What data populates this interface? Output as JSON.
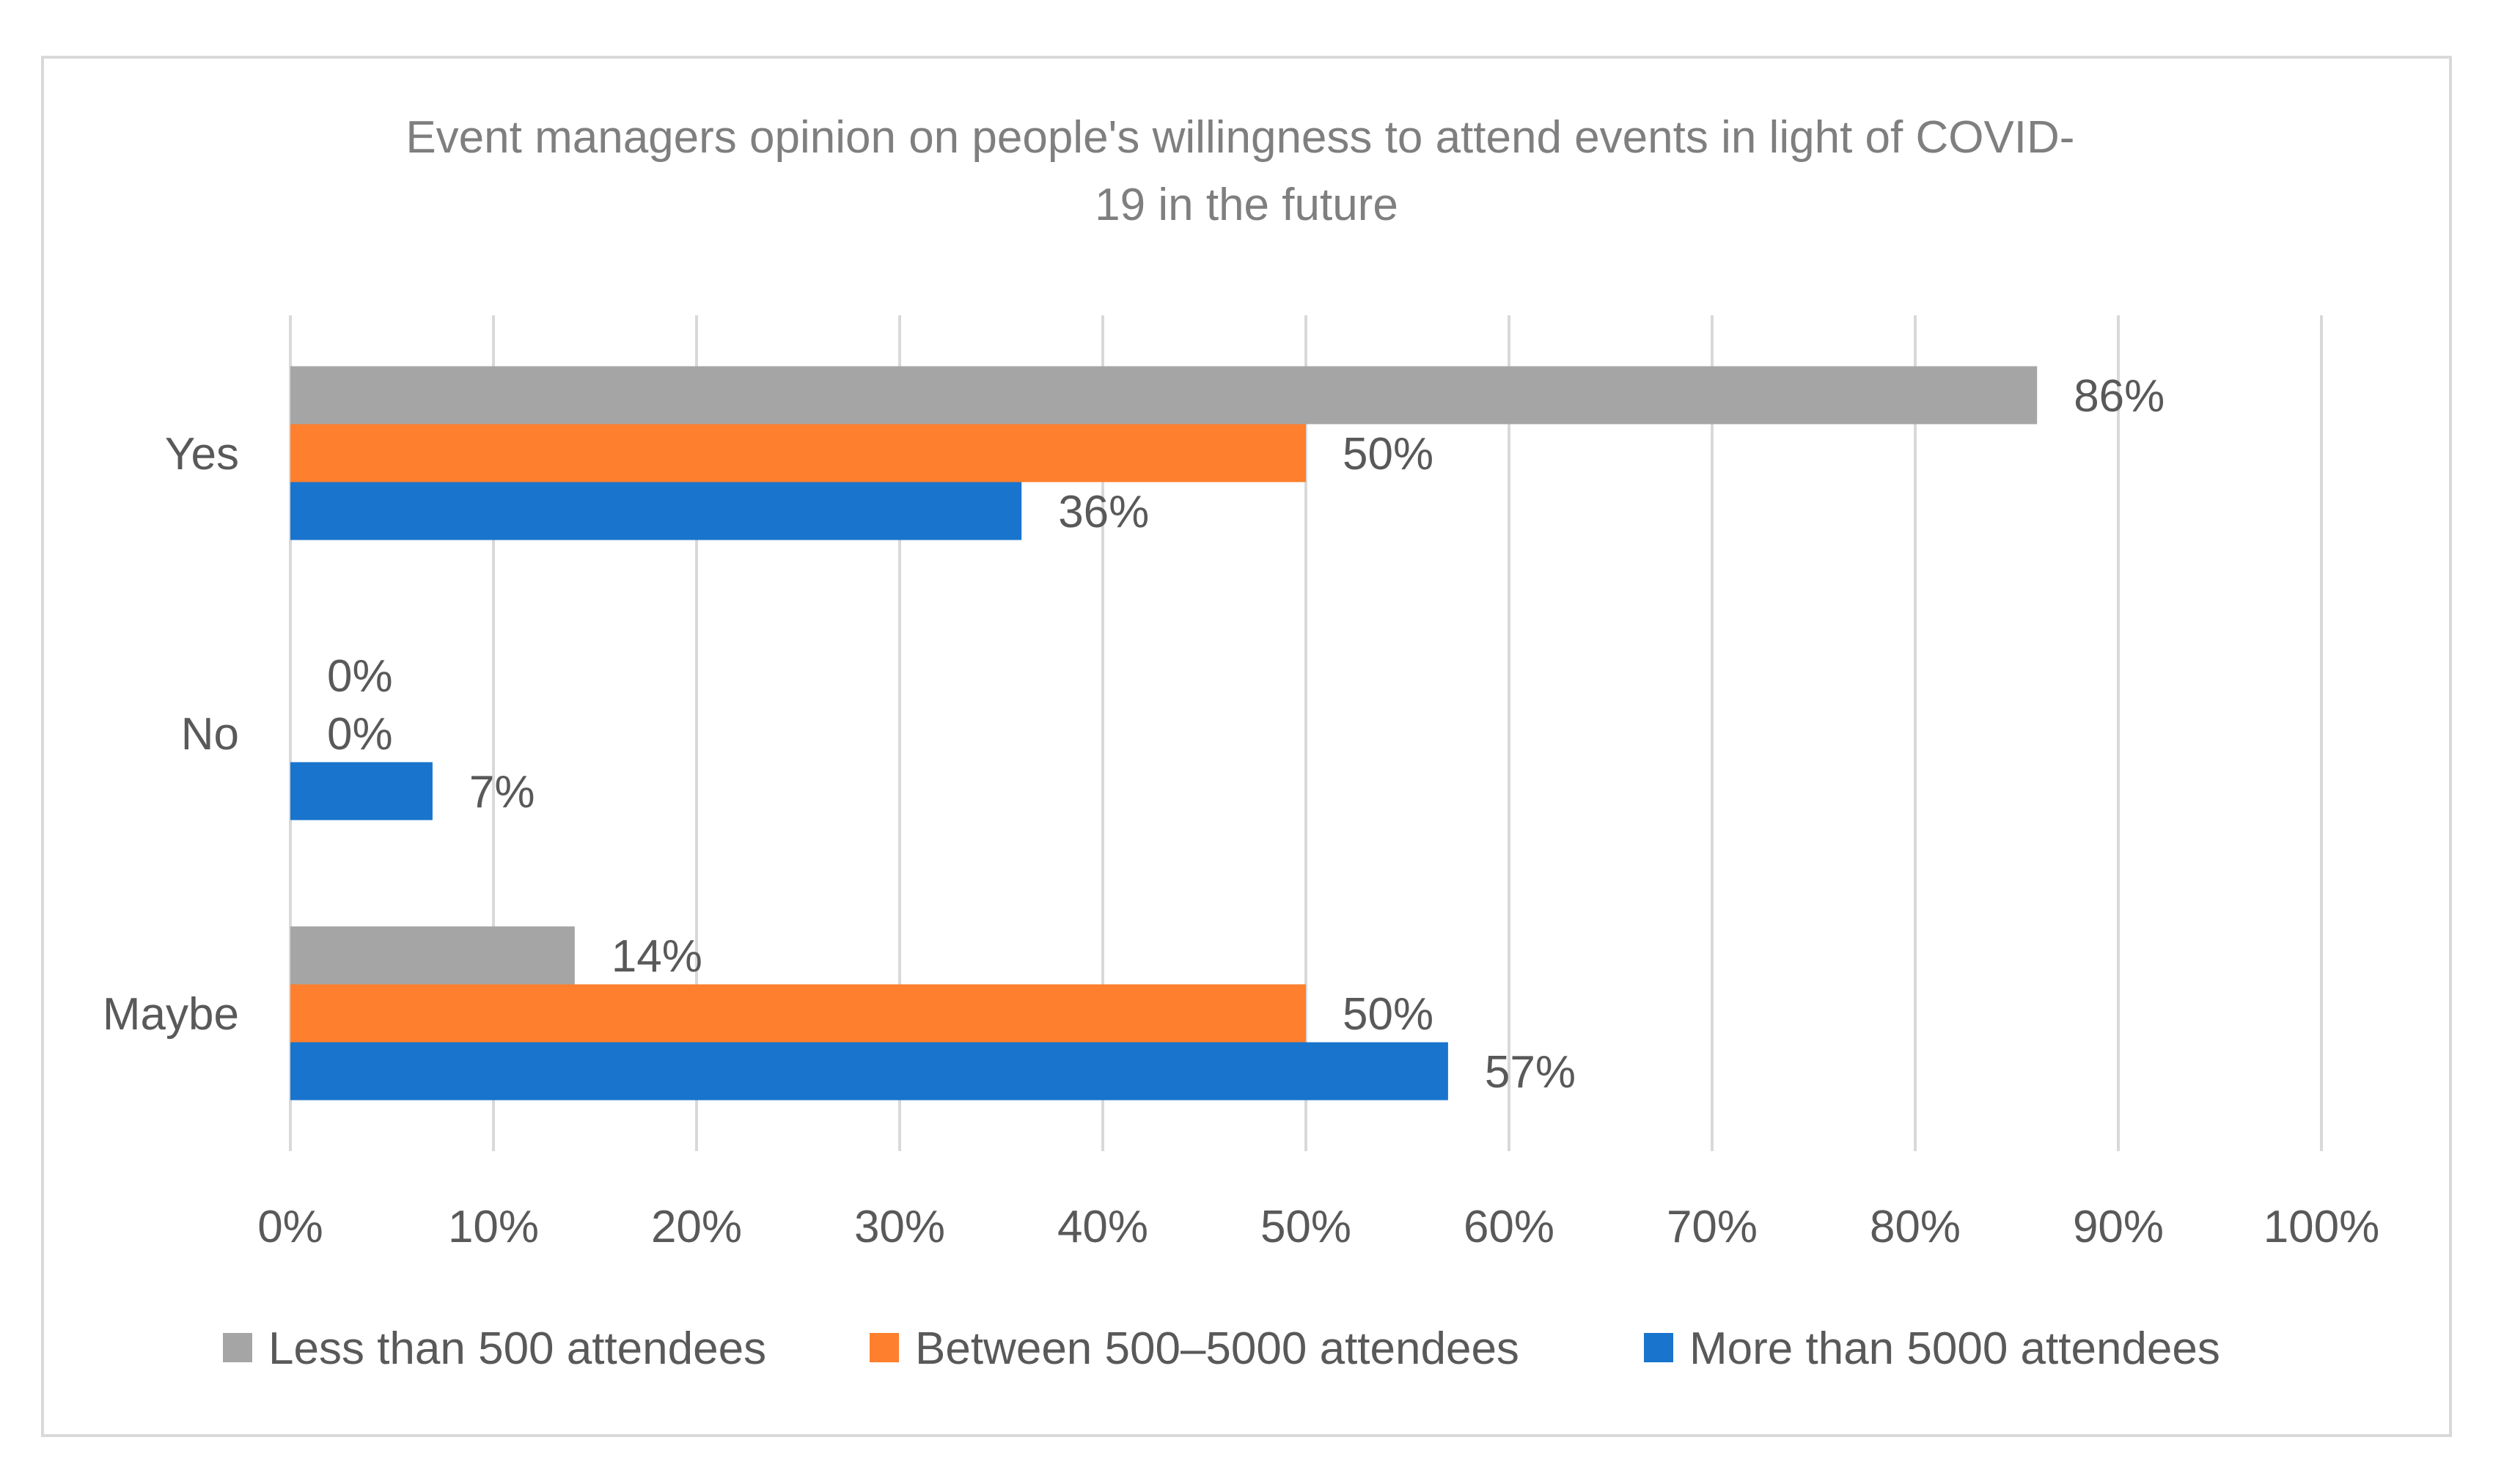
{
  "chart_data": {
    "type": "bar",
    "orientation": "horizontal",
    "title": "Event managers opinion on people's willingness to attend events in light of COVID-19 in the future",
    "title_lines": [
      "Event managers opinion on people's willingness to attend events in light of COVID-",
      "19 in the future"
    ],
    "categories": [
      "Yes",
      "No",
      "Maybe"
    ],
    "series": [
      {
        "name": "Less than 500 attendees",
        "color": "#a5a5a5",
        "values": [
          86,
          0,
          14
        ]
      },
      {
        "name": "Between 500–5000 attendees",
        "color": "#fe7f2d",
        "values": [
          50,
          0,
          50
        ]
      },
      {
        "name": "More than 5000 attendees",
        "color": "#1874cd",
        "values": [
          36,
          7,
          57
        ]
      }
    ],
    "xlim": [
      0,
      100
    ],
    "x_ticks": [
      0,
      10,
      20,
      30,
      40,
      50,
      60,
      70,
      80,
      90,
      100
    ],
    "x_tick_labels": [
      "0%",
      "10%",
      "20%",
      "30%",
      "40%",
      "50%",
      "60%",
      "70%",
      "80%",
      "90%",
      "100%"
    ],
    "value_suffix": "%",
    "grid": true,
    "legend_position": "bottom",
    "xlabel": "",
    "ylabel": "",
    "colors": {
      "text": "#595959",
      "title": "#7f7f7f",
      "grid": "#d9d9d9",
      "frame": "#d9d9d9"
    }
  }
}
